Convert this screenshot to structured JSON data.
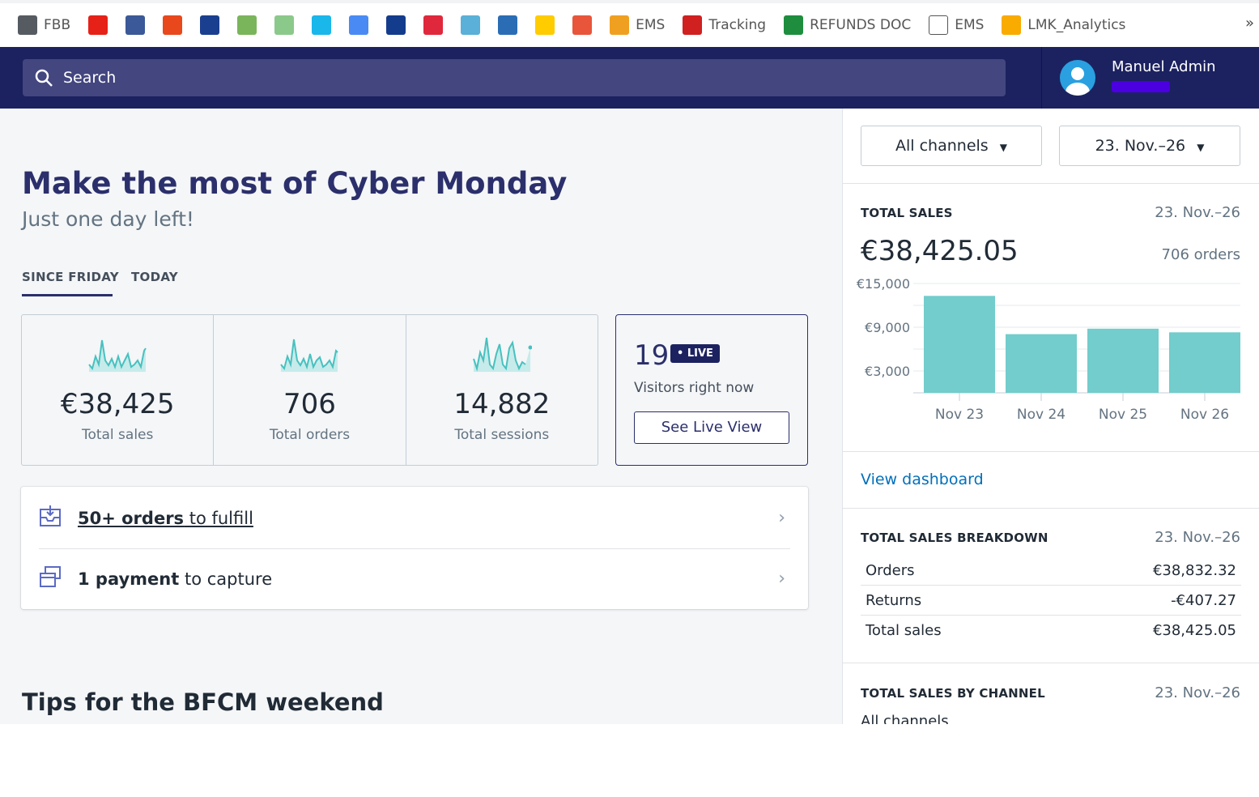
{
  "bookmarks": [
    {
      "label": "FBB",
      "icon": "fbb-icon",
      "color": "#555b61"
    },
    {
      "label": "",
      "icon": "youtube-icon",
      "color": "#e62117"
    },
    {
      "label": "",
      "icon": "facebook-icon",
      "color": "#3b5998"
    },
    {
      "label": "",
      "icon": "aliexpress-icon",
      "color": "#e8481c"
    },
    {
      "label": "",
      "icon": "paypal-icon",
      "color": "#1b3f8f"
    },
    {
      "label": "",
      "icon": "shopify-icon",
      "color": "#7ab55c"
    },
    {
      "label": "",
      "icon": "audio-icon",
      "color": "#8bc98b"
    },
    {
      "label": "",
      "icon": "vimeo-icon",
      "color": "#1ab7ea"
    },
    {
      "label": "",
      "icon": "google-translate-icon",
      "color": "#4a8af4"
    },
    {
      "label": "",
      "icon": "1and1-icon",
      "color": "#143c8c"
    },
    {
      "label": "",
      "icon": "flash-icon",
      "color": "#e0283c"
    },
    {
      "label": "",
      "icon": "globe-icon",
      "color": "#5ab0d8"
    },
    {
      "label": "",
      "icon": "blue-app-icon",
      "color": "#2a6db5"
    },
    {
      "label": "",
      "icon": "dhl-icon",
      "color": "#ffcc00"
    },
    {
      "label": "",
      "icon": "cainiao-icon",
      "color": "#e8553a"
    },
    {
      "label": "EMS",
      "icon": "ems-icon",
      "color": "#f0a020"
    },
    {
      "label": "Tracking",
      "icon": "cne-icon",
      "color": "#d02020"
    },
    {
      "label": "REFUNDS DOC",
      "icon": "sheets-icon",
      "color": "#1e8e3e"
    },
    {
      "label": "EMS",
      "icon": "document-icon",
      "color": "#ffffff"
    },
    {
      "label": "LMK_Analytics",
      "icon": "analytics-icon",
      "color": "#f9ab00"
    }
  ],
  "more": "»",
  "topbar": {
    "search_placeholder": "Search",
    "user_name": "Manuel Admin"
  },
  "main": {
    "title": "Make the most of Cyber Monday",
    "subtitle": "Just one day left!",
    "tabs": [
      {
        "label": "SINCE FRIDAY",
        "active": true
      },
      {
        "label": "TODAY",
        "active": false
      }
    ],
    "stats": [
      {
        "value": "€38,425",
        "label": "Total sales"
      },
      {
        "value": "706",
        "label": "Total orders"
      },
      {
        "value": "14,882",
        "label": "Total sessions"
      }
    ],
    "live": {
      "count": "19",
      "badge": "• LIVE",
      "text": "Visitors right now",
      "button": "See Live View"
    },
    "tasks": [
      {
        "bold": "50+ orders",
        "rest": " to fulfill",
        "icon": "inbox-icon"
      },
      {
        "bold": "1 payment",
        "rest": " to capture",
        "icon": "payment-icon"
      }
    ],
    "tips_title": "Tips for the BFCM weekend"
  },
  "side": {
    "channel_dropdown": "All channels",
    "date_dropdown": "23. Nov.–26",
    "total_sales": {
      "heading": "TOTAL SALES",
      "date": "23. Nov.–26",
      "value": "€38,425.05",
      "orders": "706 orders"
    },
    "view_dashboard": "View dashboard",
    "breakdown": {
      "heading": "TOTAL SALES BREAKDOWN",
      "date": "23. Nov.–26",
      "rows": [
        {
          "label": "Orders",
          "value": "€38,832.32"
        },
        {
          "label": "Returns",
          "value": "-€407.27"
        },
        {
          "label": "Total sales",
          "value": "€38,425.05"
        }
      ]
    },
    "by_channel": {
      "heading": "TOTAL SALES BY CHANNEL",
      "date": "23. Nov.–26",
      "first_row": "All channels"
    }
  },
  "chart_data": {
    "type": "bar",
    "categories": [
      "Nov 23",
      "Nov 24",
      "Nov 25",
      "Nov 26"
    ],
    "values": [
      13300,
      8050,
      8800,
      8300
    ],
    "ylim": [
      0,
      15000
    ],
    "yticks": [
      {
        "v": 15000,
        "label": "€15,000"
      },
      {
        "v": 9000,
        "label": "€9,000"
      },
      {
        "v": 3000,
        "label": "€3,000"
      }
    ],
    "gridlines": [
      0,
      3000,
      6000,
      9000,
      12000,
      15000
    ],
    "grid": true,
    "color": "#72cdcc"
  }
}
